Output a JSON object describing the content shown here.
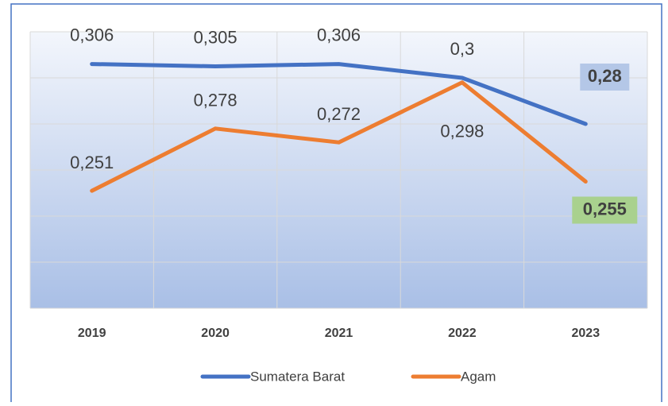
{
  "chart_data": {
    "type": "line",
    "categories": [
      "2019",
      "2020",
      "2021",
      "2022",
      "2023"
    ],
    "series": [
      {
        "name": "Sumatera Barat",
        "color": "#4472c4",
        "label_box_color": "#b4c7e7",
        "values": [
          0.306,
          0.305,
          0.306,
          0.3,
          0.28
        ],
        "value_labels": [
          "0,306",
          "0,305",
          "0,306",
          "0,3",
          "0,28"
        ]
      },
      {
        "name": "Agam",
        "color": "#ed7d31",
        "label_box_color": "#a9d18e",
        "values": [
          0.251,
          0.278,
          0.272,
          0.298,
          0.255
        ],
        "value_labels": [
          "0,251",
          "0,278",
          "0,272",
          "0,298",
          "0,255"
        ]
      }
    ],
    "ylim": [
      0.2,
      0.32
    ],
    "yticks": [
      0.2,
      0.22,
      0.24,
      0.26,
      0.28,
      0.3,
      0.32
    ],
    "grid": true
  }
}
